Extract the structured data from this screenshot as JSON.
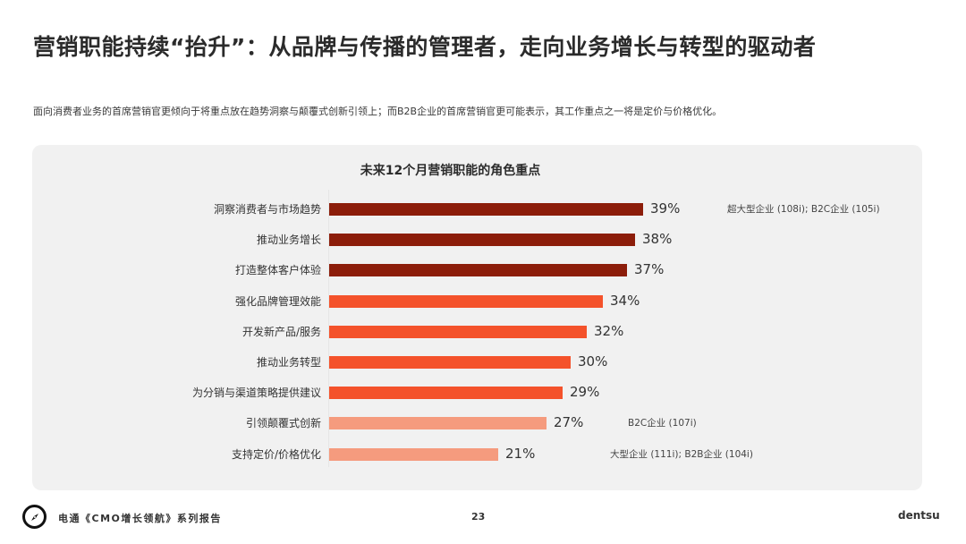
{
  "header": {
    "title": "营销职能持续“抬升”：从品牌与传播的管理者，走向业务增长与转型的驱动者",
    "subtitle": "面向消费者业务的首席营销官更倾向于将重点放在趋势洞察与颠覆式创新引领上；而B2B企业的首席营销官更可能表示，其工作重点之一将是定价与价格优化。"
  },
  "colors": {
    "dark": "#8c1d0a",
    "mid": "#f4522b",
    "light": "#f59b7e",
    "panel": "#f1f1f1"
  },
  "chart_data": {
    "type": "bar",
    "orientation": "horizontal",
    "title": "未来12个月营销职能的角色重点",
    "xlabel": "",
    "ylabel": "",
    "unit": "%",
    "grid": false,
    "legend": null,
    "categories": [
      "洞察消费者与市场趋势",
      "推动业务增长",
      "打造整体客户体验",
      "强化品牌管理效能",
      "开发新产品/服务",
      "推动业务转型",
      "为分销与渠道策略提供建议",
      "引领颠覆式创新",
      "支持定价/价格优化"
    ],
    "values": [
      39,
      38,
      37,
      34,
      32,
      30,
      29,
      27,
      21
    ],
    "labels": [
      "39%",
      "38%",
      "37%",
      "34%",
      "32%",
      "30%",
      "29%",
      "27%",
      "21%"
    ],
    "color_groups": [
      "dark",
      "dark",
      "dark",
      "mid",
      "mid",
      "mid",
      "mid",
      "light",
      "light"
    ],
    "annotations": [
      {
        "category": "洞察消费者与市场趋势",
        "text": "超大型企业 (108i); B2C企业 (105i)"
      },
      {
        "category": "引领颠覆式创新",
        "text": "B2C企业 (107i)"
      },
      {
        "category": "支持定价/价格优化",
        "text": "大型企业 (111i); B2B企业 (104i)"
      }
    ],
    "xlim": [
      0,
      40
    ]
  },
  "footer": {
    "logo_icon": "compass-icon",
    "series_name": "电通《CMO增长领航》系列报告",
    "page_number": "23",
    "brand": "dentsu"
  }
}
